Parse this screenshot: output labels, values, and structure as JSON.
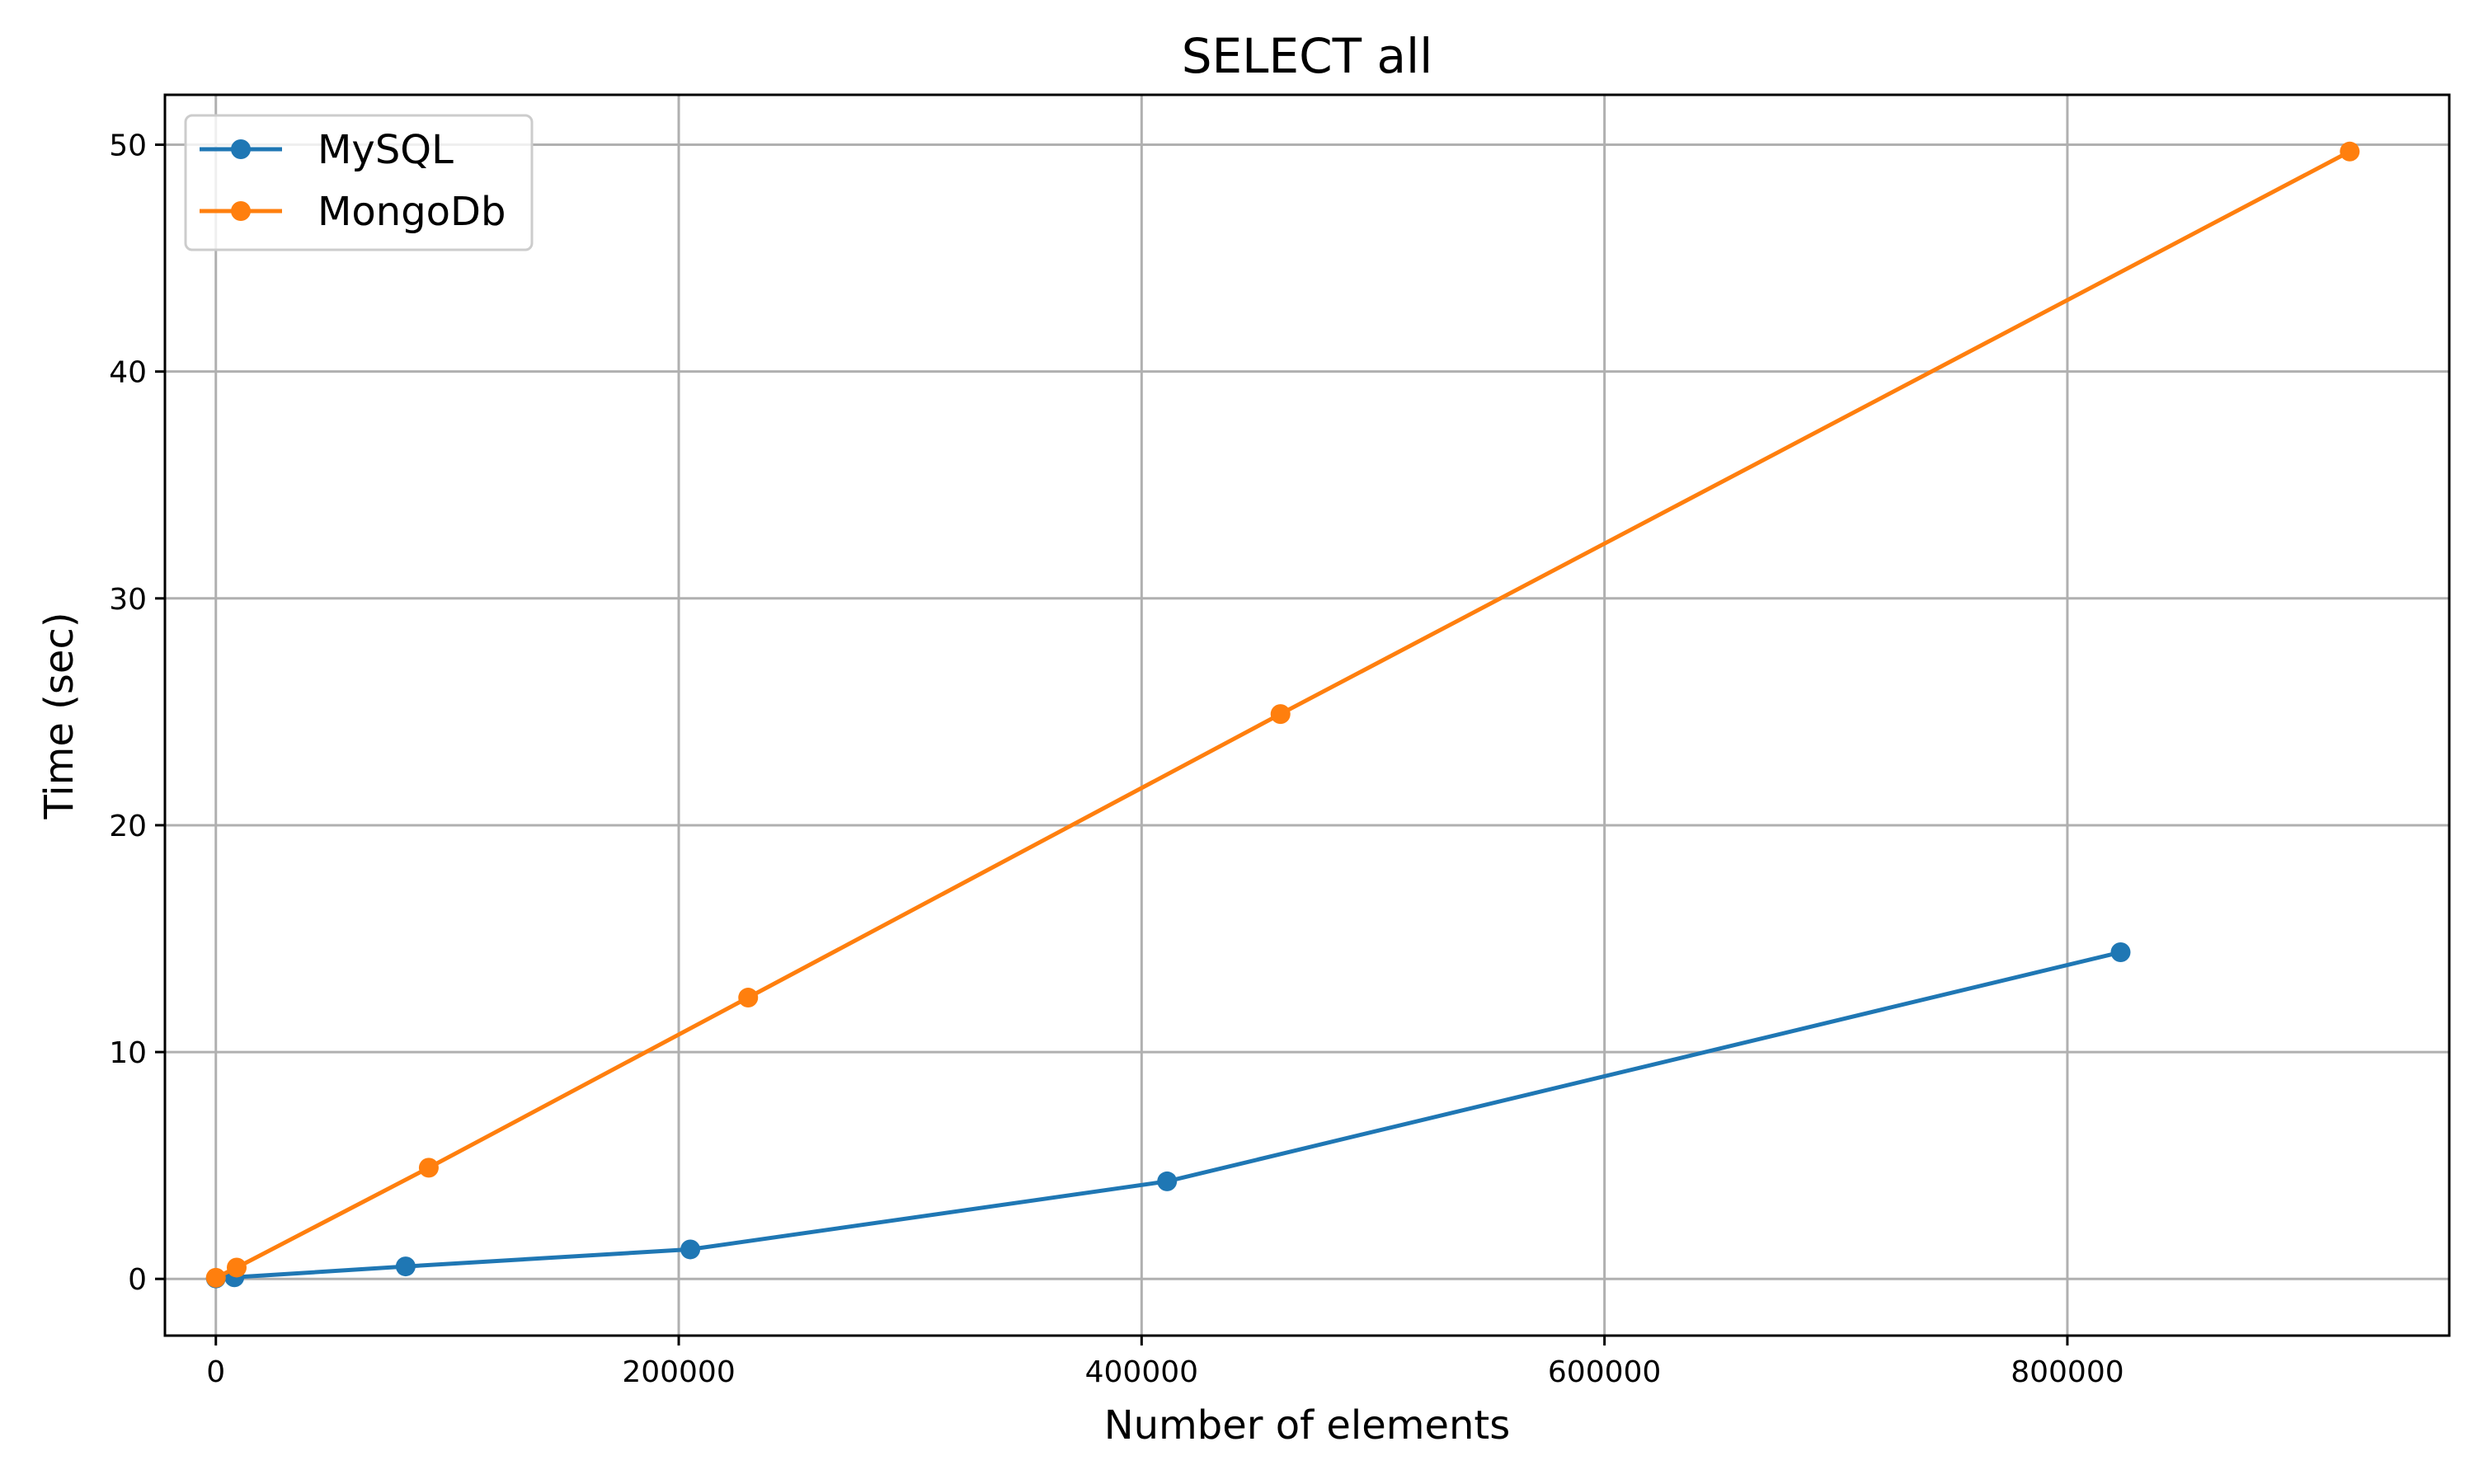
{
  "chart_data": {
    "type": "line",
    "title": "SELECT all",
    "xlabel": "Number of elements",
    "ylabel": "Time (sec)",
    "xlim": [
      -22000,
      965000
    ],
    "ylim": [
      -2.5,
      52.2
    ],
    "xticks": [
      0,
      200000,
      400000,
      600000,
      800000
    ],
    "xtick_labels": [
      "0",
      "200000",
      "400000",
      "600000",
      "800000"
    ],
    "yticks": [
      0,
      10,
      20,
      30,
      40,
      50
    ],
    "ytick_labels": [
      "0",
      "10",
      "20",
      "30",
      "40",
      "50"
    ],
    "grid": true,
    "legend_position": "upper-left",
    "series": [
      {
        "name": "MySQL",
        "color": "#1f77b4",
        "marker": "circle",
        "x": [
          0,
          8000,
          82000,
          205000,
          411000,
          823000
        ],
        "y": [
          0.02,
          0.07,
          0.55,
          1.3,
          4.3,
          14.4
        ]
      },
      {
        "name": "MongoDb",
        "color": "#ff7f0e",
        "marker": "circle",
        "x": [
          0,
          9000,
          92000,
          230000,
          460000,
          922000
        ],
        "y": [
          0.05,
          0.5,
          4.9,
          12.4,
          24.9,
          49.7
        ]
      }
    ]
  }
}
